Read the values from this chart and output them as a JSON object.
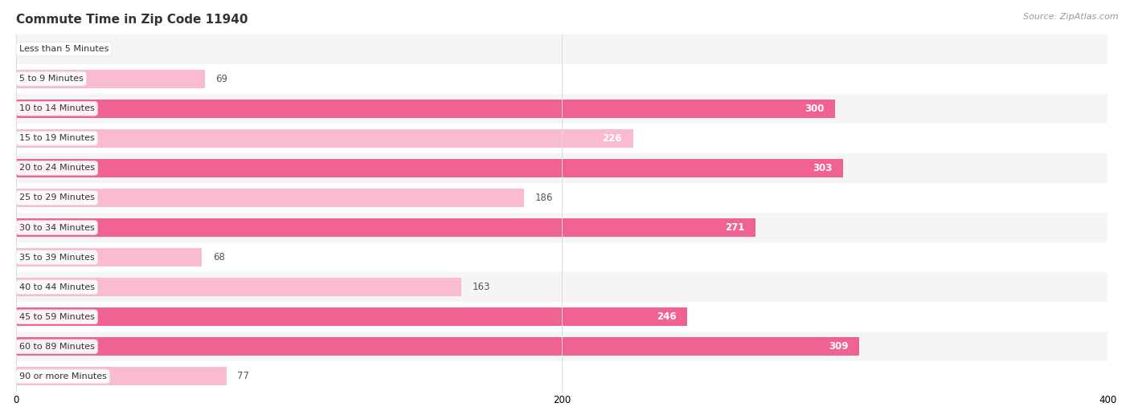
{
  "title": "Commute Time in Zip Code 11940",
  "source": "Source: ZipAtlas.com",
  "categories": [
    "Less than 5 Minutes",
    "5 to 9 Minutes",
    "10 to 14 Minutes",
    "15 to 19 Minutes",
    "20 to 24 Minutes",
    "25 to 29 Minutes",
    "30 to 34 Minutes",
    "35 to 39 Minutes",
    "40 to 44 Minutes",
    "45 to 59 Minutes",
    "60 to 89 Minutes",
    "90 or more Minutes"
  ],
  "values": [
    0,
    69,
    300,
    226,
    303,
    186,
    271,
    68,
    163,
    246,
    309,
    77
  ],
  "xlim": [
    0,
    400
  ],
  "xticks": [
    0,
    200,
    400
  ],
  "bar_colors": [
    "#f8bbd0",
    "#f8bbd0",
    "#f06292",
    "#f8bbd0",
    "#f06292",
    "#f8bbd0",
    "#f06292",
    "#f8bbd0",
    "#f8bbd0",
    "#f06292",
    "#f06292",
    "#f8bbd0"
  ],
  "row_bg_colors": [
    "#f5f5f5",
    "#ffffff",
    "#f5f5f5",
    "#ffffff",
    "#f5f5f5",
    "#ffffff",
    "#f5f5f5",
    "#ffffff",
    "#f5f5f5",
    "#ffffff",
    "#f5f5f5",
    "#ffffff"
  ],
  "label_white_color": "#ffffff",
  "label_dark_color": "#555555",
  "title_fontsize": 11,
  "source_fontsize": 8,
  "value_fontsize": 8.5,
  "category_fontsize": 8,
  "tick_fontsize": 8.5,
  "threshold_white_label": 220,
  "bar_height": 0.62,
  "figure_width": 14.06,
  "figure_height": 5.22,
  "dpi": 100,
  "grid_color": "#dddddd",
  "pill_bg": "#ffffff",
  "pill_border": "#e0e0e0"
}
